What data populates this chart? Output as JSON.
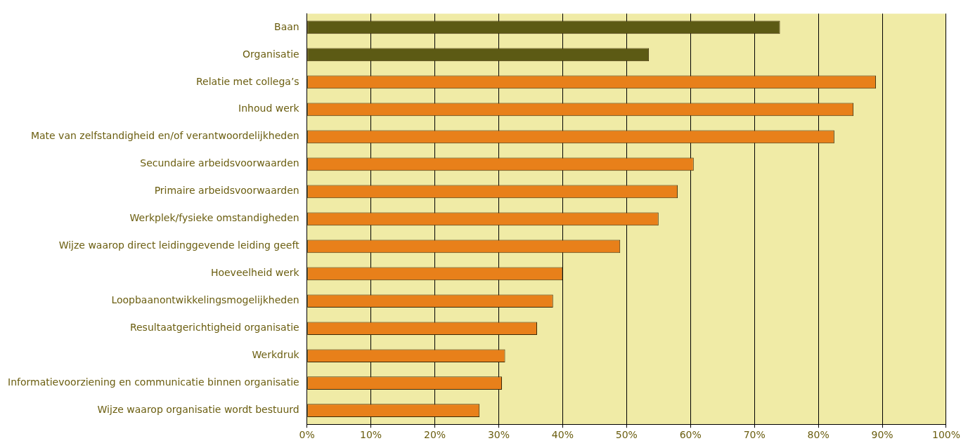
{
  "chart_data": {
    "type": "bar",
    "orientation": "horizontal",
    "categories": [
      "Baan",
      "Organisatie",
      "Relatie met collega’s",
      "Inhoud werk",
      "Mate van zelfstandigheid en/of verantwoordelijkheden",
      "Secundaire arbeidsvoorwaarden",
      "Primaire arbeidsvoorwaarden",
      "Werkplek/fysieke omstandigheden",
      "Wijze waarop direct leidinggevende leiding geeft",
      "Hoeveelheid werk",
      "Loopbaanontwikkelingsmogelijkheden",
      "Resultaatgerichtigheid organisatie",
      "Werkdruk",
      "Informatievoorziening en communicatie binnen organisatie",
      "Wijze waarop organisatie wordt bestuurd"
    ],
    "values": [
      74,
      53.5,
      89,
      85.5,
      82.5,
      60.5,
      58,
      55,
      49,
      40,
      38.5,
      36,
      31,
      30.5,
      27
    ],
    "colors": [
      "#5c5a14",
      "#5c5a14",
      "#e8801a",
      "#e8801a",
      "#e8801a",
      "#e8801a",
      "#e8801a",
      "#e8801a",
      "#e8801a",
      "#e8801a",
      "#e8801a",
      "#e8801a",
      "#e8801a",
      "#e8801a",
      "#e8801a"
    ],
    "xlim": [
      0,
      100
    ],
    "xticks": [
      {
        "value": 0,
        "label": "0%"
      },
      {
        "value": 10,
        "label": "10%"
      },
      {
        "value": 20,
        "label": "20%"
      },
      {
        "value": 30,
        "label": "30%"
      },
      {
        "value": 40,
        "label": "40%"
      },
      {
        "value": 50,
        "label": "50%"
      },
      {
        "value": 60,
        "label": "60%"
      },
      {
        "value": 70,
        "label": "70%"
      },
      {
        "value": 80,
        "label": "80%"
      },
      {
        "value": 90,
        "label": "90%"
      },
      {
        "value": 100,
        "label": "100%"
      }
    ],
    "grid": "x",
    "legend": false
  }
}
